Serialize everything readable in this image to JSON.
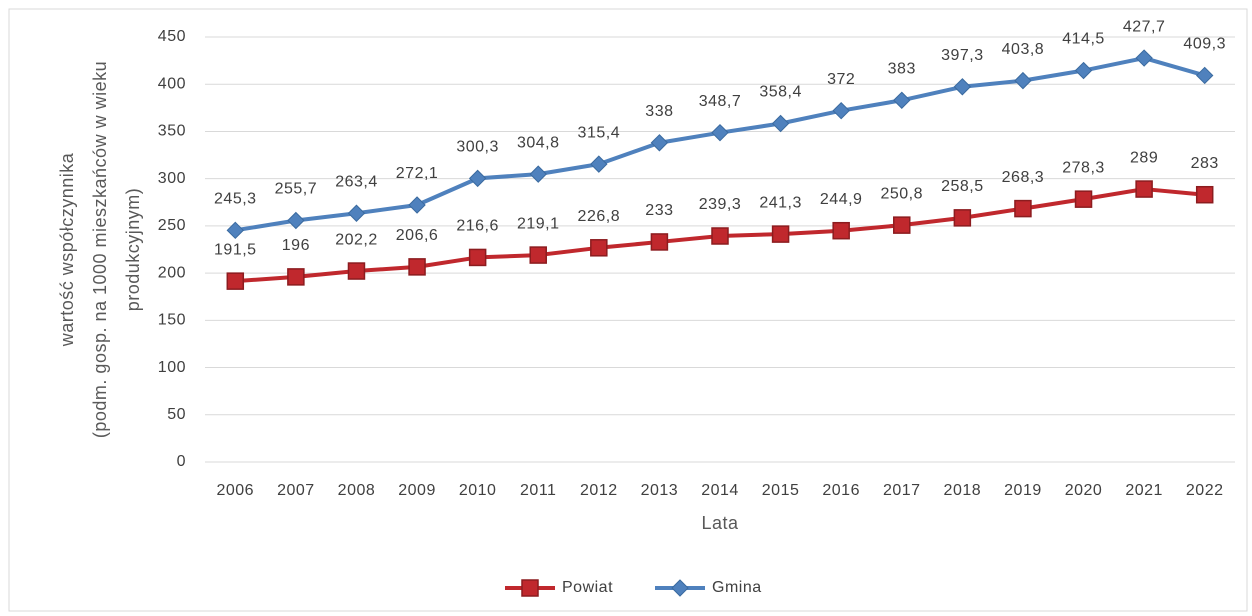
{
  "chart_data": {
    "type": "line",
    "categories": [
      "2006",
      "2007",
      "2008",
      "2009",
      "2010",
      "2011",
      "2012",
      "2013",
      "2014",
      "2015",
      "2016",
      "2017",
      "2018",
      "2019",
      "2020",
      "2021",
      "2022"
    ],
    "series": [
      {
        "name": "Powiat",
        "color": "#c0282d",
        "marker": "square",
        "values": [
          191.5,
          196,
          202.2,
          206.6,
          216.6,
          219.1,
          226.8,
          233,
          239.3,
          241.3,
          244.9,
          250.8,
          258.5,
          268.3,
          278.3,
          289,
          283
        ],
        "value_labels": [
          "191,5",
          "196",
          "202,2",
          "206,6",
          "216,6",
          "219,1",
          "226,8",
          "233",
          "239,3",
          "241,3",
          "244,9",
          "250,8",
          "258,5",
          "268,3",
          "278,3",
          "289",
          "283"
        ]
      },
      {
        "name": "Gmina",
        "color": "#4f81bd",
        "marker": "diamond",
        "values": [
          245.3,
          255.7,
          263.4,
          272.1,
          300.3,
          304.8,
          315.4,
          338,
          348.7,
          358.4,
          372,
          383,
          397.3,
          403.8,
          414.5,
          427.7,
          409.3
        ],
        "value_labels": [
          "245,3",
          "255,7",
          "263,4",
          "272,1",
          "300,3",
          "304,8",
          "315,4",
          "338",
          "348,7",
          "358,4",
          "372",
          "383",
          "397,3",
          "403,8",
          "414,5",
          "427,7",
          "409,3"
        ]
      }
    ],
    "y_label": [
      "wartość współczynnika",
      "(podm. gosp. na 1000 mieszkańców w wieku",
      "produkcyjnym)"
    ],
    "x_label": "Lata",
    "ylim": [
      0,
      450
    ],
    "yticks": [
      0,
      50,
      100,
      150,
      200,
      250,
      300,
      350,
      400,
      450
    ],
    "grid": true,
    "legend": "bottom"
  }
}
